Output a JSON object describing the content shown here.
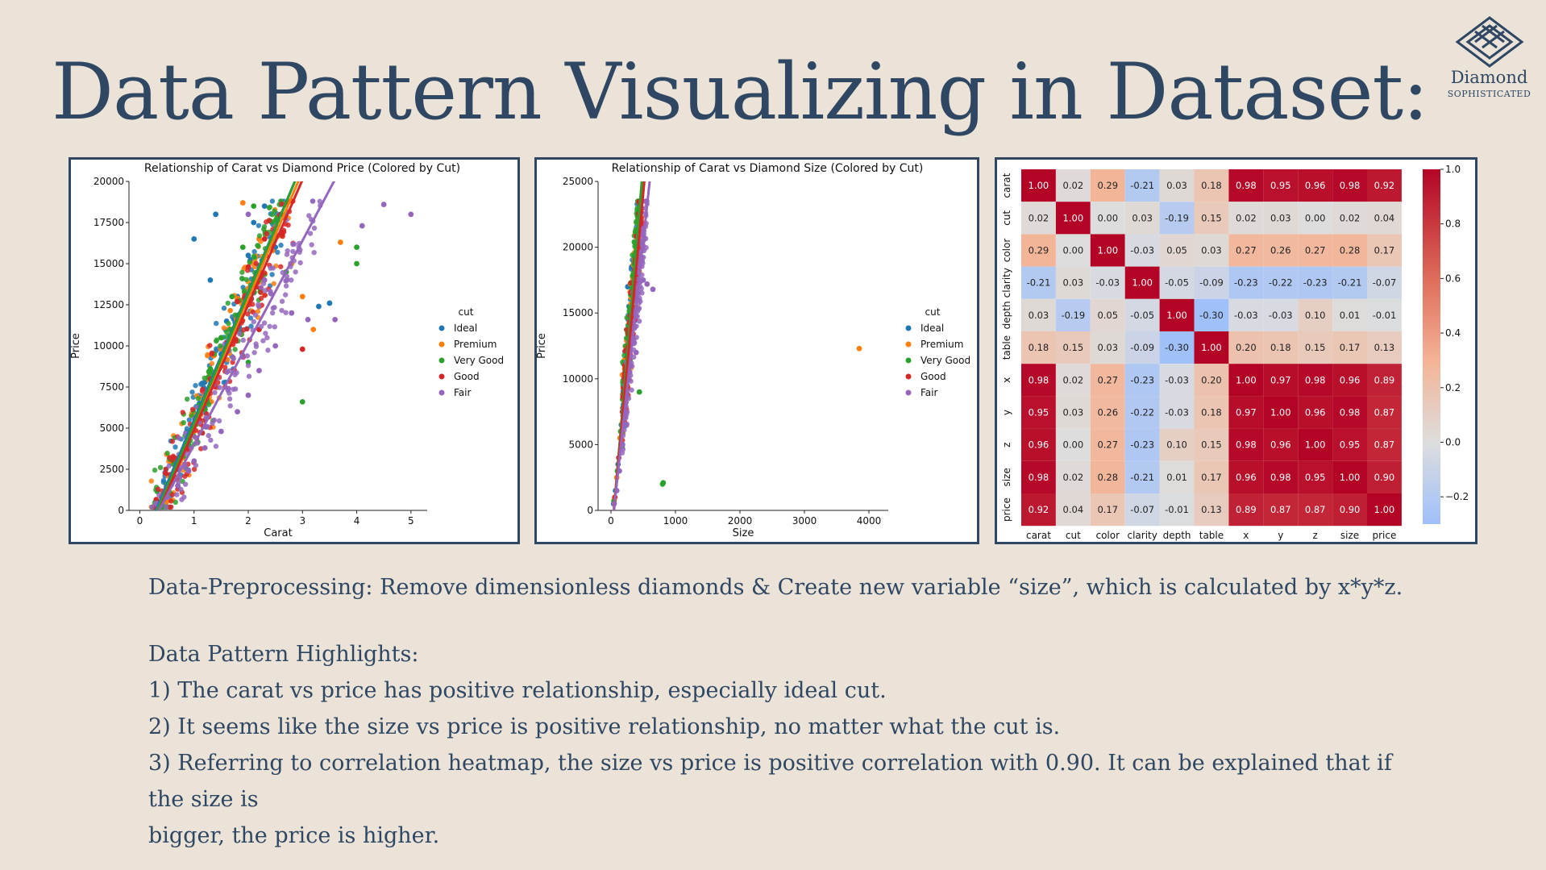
{
  "slide": {
    "title": "Data Pattern Visualizing in Dataset:",
    "logo": {
      "name": "Diamond",
      "tagline": "SOPHISTICATED",
      "icon": "diamond-logo-icon"
    },
    "preprocessing": "Data-Preprocessing: Remove dimensionless diamonds & Create new variable “size”, which is calculated by x*y*z.",
    "highlights_title": "Data Pattern Highlights:",
    "highlights": [
      "1) The carat vs price has positive relationship, especially ideal cut.",
      "2) It seems like the size vs price is positive relationship, no matter what the cut is.",
      "3) Referring to correlation heatmap, the size vs price is positive correlation with 0.90. It can be explained that if the size is",
      "bigger, the price is higher."
    ],
    "colors": {
      "background": "#ebe3d7",
      "text": "#2f4763",
      "border": "#2f4763"
    }
  },
  "chart_data": [
    {
      "type": "scatter",
      "title": "Relationship of Carat vs Diamond Price (Colored by Cut)",
      "xlabel": "Carat",
      "ylabel": "Price",
      "xlim": [
        -0.2,
        5.3
      ],
      "ylim": [
        0,
        20000
      ],
      "xticks": [
        0,
        1,
        2,
        3,
        4,
        5
      ],
      "yticks": [
        0,
        2500,
        5000,
        7500,
        10000,
        12500,
        15000,
        17500,
        20000
      ],
      "legend_title": "cut",
      "legend_position": "right",
      "series": [
        {
          "name": "Ideal",
          "color": "#1f77b4",
          "trend": {
            "slope": 7800,
            "intercept": -2300
          },
          "points": [
            [
              0.3,
              500
            ],
            [
              0.5,
              1400
            ],
            [
              0.7,
              2500
            ],
            [
              0.9,
              4000
            ],
            [
              1.0,
              5200
            ],
            [
              1.1,
              6500
            ],
            [
              1.2,
              7800
            ],
            [
              1.5,
              9500
            ],
            [
              1.6,
              11500
            ],
            [
              1.8,
              13000
            ],
            [
              2.0,
              15500
            ],
            [
              2.1,
              17500
            ],
            [
              2.3,
              18500
            ],
            [
              1.4,
              18000
            ],
            [
              1.0,
              16500
            ],
            [
              1.3,
              14000
            ],
            [
              2.5,
              16000
            ],
            [
              3.5,
              12600
            ],
            [
              3.3,
              12400
            ]
          ]
        },
        {
          "name": "Premium",
          "color": "#ff7f0e",
          "trend": {
            "slope": 7700,
            "intercept": -2500
          },
          "points": [
            [
              0.4,
              900
            ],
            [
              0.6,
              1800
            ],
            [
              0.8,
              3200
            ],
            [
              1.0,
              4800
            ],
            [
              1.2,
              7000
            ],
            [
              1.5,
              9000
            ],
            [
              1.7,
              11000
            ],
            [
              2.0,
              13500
            ],
            [
              2.2,
              16500
            ],
            [
              2.5,
              17000
            ],
            [
              2.8,
              15000
            ],
            [
              3.0,
              13000
            ],
            [
              3.7,
              16300
            ],
            [
              3.2,
              11000
            ],
            [
              1.9,
              18700
            ]
          ]
        },
        {
          "name": "Very Good",
          "color": "#2ca02c",
          "trend": {
            "slope": 7900,
            "intercept": -2600
          },
          "points": [
            [
              0.3,
              600
            ],
            [
              0.5,
              1600
            ],
            [
              0.7,
              2900
            ],
            [
              0.9,
              4500
            ],
            [
              1.1,
              6400
            ],
            [
              1.3,
              8600
            ],
            [
              1.5,
              10500
            ],
            [
              1.7,
              13000
            ],
            [
              1.9,
              16000
            ],
            [
              2.1,
              18500
            ],
            [
              2.4,
              17600
            ],
            [
              2.7,
              14500
            ],
            [
              3.0,
              6600
            ],
            [
              4.0,
              16000
            ],
            [
              4.0,
              15000
            ],
            [
              2.0,
              9000
            ]
          ]
        },
        {
          "name": "Good",
          "color": "#d62728",
          "trend": {
            "slope": 7600,
            "intercept": -2700
          },
          "points": [
            [
              0.4,
              800
            ],
            [
              0.6,
              1700
            ],
            [
              0.9,
              3700
            ],
            [
              1.1,
              5500
            ],
            [
              1.3,
              8000
            ],
            [
              1.6,
              10200
            ],
            [
              1.8,
              12700
            ],
            [
              2.0,
              14800
            ],
            [
              2.3,
              16500
            ],
            [
              2.6,
              18000
            ],
            [
              3.0,
              9800
            ],
            [
              2.2,
              11000
            ]
          ]
        },
        {
          "name": "Fair",
          "color": "#9467bd",
          "trend": {
            "slope": 6200,
            "intercept": -2200
          },
          "points": [
            [
              0.3,
              400
            ],
            [
              0.5,
              800
            ],
            [
              0.7,
              1500
            ],
            [
              0.9,
              2400
            ],
            [
              1.0,
              3000
            ],
            [
              1.2,
              3800
            ],
            [
              1.5,
              4800
            ],
            [
              1.8,
              6000
            ],
            [
              2.0,
              7000
            ],
            [
              2.2,
              8500
            ],
            [
              2.5,
              10000
            ],
            [
              2.8,
              12000
            ],
            [
              3.1,
              11600
            ],
            [
              3.6,
              11600
            ],
            [
              4.1,
              17300
            ],
            [
              4.5,
              18600
            ],
            [
              5.0,
              18000
            ],
            [
              2.3,
              14000
            ],
            [
              2.0,
              18000
            ]
          ]
        }
      ]
    },
    {
      "type": "scatter",
      "title": "Relationship of Carat vs Diamond Size (Colored by Cut)",
      "xlabel": "Size",
      "ylabel": "Price",
      "xlim": [
        -200,
        4300
      ],
      "ylim": [
        0,
        25000
      ],
      "xticks": [
        0,
        1000,
        2000,
        3000,
        4000
      ],
      "yticks": [
        0,
        5000,
        10000,
        15000,
        20000,
        25000
      ],
      "legend_title": "cut",
      "legend_position": "right",
      "series": [
        {
          "name": "Ideal",
          "color": "#1f77b4",
          "trend": {
            "slope": 56,
            "intercept": -2500
          },
          "points": [
            [
              40,
              500
            ],
            [
              70,
              1500
            ],
            [
              110,
              3500
            ],
            [
              160,
              6500
            ],
            [
              200,
              9000
            ],
            [
              240,
              12000
            ],
            [
              280,
              15500
            ],
            [
              320,
              18500
            ],
            [
              350,
              17800
            ],
            [
              260,
              17000
            ]
          ]
        },
        {
          "name": "Premium",
          "color": "#ff7f0e",
          "trend": {
            "slope": 54,
            "intercept": -2300
          },
          "points": [
            [
              50,
              800
            ],
            [
              90,
              2500
            ],
            [
              140,
              5500
            ],
            [
              190,
              8500
            ],
            [
              230,
              11500
            ],
            [
              290,
              14500
            ],
            [
              340,
              17500
            ],
            [
              3850,
              12300
            ],
            [
              420,
              18600
            ]
          ]
        },
        {
          "name": "Very Good",
          "color": "#2ca02c",
          "trend": {
            "slope": 58,
            "intercept": -2700
          },
          "points": [
            [
              45,
              700
            ],
            [
              100,
              3000
            ],
            [
              150,
              6000
            ],
            [
              210,
              10000
            ],
            [
              260,
              13500
            ],
            [
              310,
              16500
            ],
            [
              360,
              18700
            ],
            [
              810,
              2100
            ],
            [
              800,
              2000
            ],
            [
              440,
              9000
            ]
          ]
        },
        {
          "name": "Good",
          "color": "#d62728",
          "trend": {
            "slope": 53,
            "intercept": -2400
          },
          "points": [
            [
              60,
              1000
            ],
            [
              120,
              4000
            ],
            [
              180,
              7500
            ],
            [
              240,
              11000
            ],
            [
              300,
              14800
            ],
            [
              370,
              18300
            ],
            [
              380,
              18800
            ]
          ]
        },
        {
          "name": "Fair",
          "color": "#9467bd",
          "trend": {
            "slope": 45,
            "intercept": -2000
          },
          "points": [
            [
              50,
              500
            ],
            [
              90,
              1500
            ],
            [
              130,
              3000
            ],
            [
              180,
              5000
            ],
            [
              230,
              7500
            ],
            [
              290,
              10500
            ],
            [
              350,
              13000
            ],
            [
              420,
              16000
            ],
            [
              500,
              17500
            ],
            [
              560,
              17200
            ],
            [
              650,
              16800
            ],
            [
              390,
              12000
            ]
          ]
        }
      ]
    },
    {
      "type": "heatmap",
      "labels": [
        "carat",
        "cut",
        "color",
        "clarity",
        "depth",
        "table",
        "x",
        "y",
        "z",
        "size",
        "price"
      ],
      "colorbar_ticks": [
        1.0,
        0.8,
        0.6,
        0.4,
        0.2,
        0.0,
        -0.2
      ],
      "colorbar_tick_labels": [
        "1.0",
        "0.8",
        "0.6",
        "0.4",
        "0.2",
        "0.0",
        "−0.2"
      ],
      "colorbar_range": [
        -0.3,
        1.0
      ],
      "values": [
        [
          "1.00",
          "0.02",
          "0.29",
          "-0.21",
          "0.03",
          "0.18",
          "0.98",
          "0.95",
          "0.96",
          "0.98",
          "0.92"
        ],
        [
          "0.02",
          "1.00",
          "0.00",
          "0.03",
          "-0.19",
          "0.15",
          "0.02",
          "0.03",
          "0.00",
          "0.02",
          "0.04"
        ],
        [
          "0.29",
          "0.00",
          "1.00",
          "-0.03",
          "0.05",
          "0.03",
          "0.27",
          "0.26",
          "0.27",
          "0.28",
          "0.17"
        ],
        [
          "-0.21",
          "0.03",
          "-0.03",
          "1.00",
          "-0.05",
          "-0.09",
          "-0.23",
          "-0.22",
          "-0.23",
          "-0.21",
          "-0.07"
        ],
        [
          "0.03",
          "-0.19",
          "0.05",
          "-0.05",
          "1.00",
          "-0.30",
          "-0.03",
          "-0.03",
          "0.10",
          "0.01",
          "-0.01"
        ],
        [
          "0.18",
          "0.15",
          "0.03",
          "-0.09",
          "-0.30",
          "1.00",
          "0.20",
          "0.18",
          "0.15",
          "0.17",
          "0.13"
        ],
        [
          "0.98",
          "0.02",
          "0.27",
          "-0.23",
          "-0.03",
          "0.20",
          "1.00",
          "0.97",
          "0.98",
          "0.96",
          "0.89"
        ],
        [
          "0.95",
          "0.03",
          "0.26",
          "-0.22",
          "-0.03",
          "0.18",
          "0.97",
          "1.00",
          "0.96",
          "0.98",
          "0.87"
        ],
        [
          "0.96",
          "0.00",
          "0.27",
          "-0.23",
          "0.10",
          "0.15",
          "0.98",
          "0.96",
          "1.00",
          "0.95",
          "0.87"
        ],
        [
          "0.98",
          "0.02",
          "0.28",
          "-0.21",
          "0.01",
          "0.17",
          "0.96",
          "0.98",
          "0.95",
          "1.00",
          "0.90"
        ],
        [
          "0.92",
          "0.04",
          "0.17",
          "-0.07",
          "-0.01",
          "0.13",
          "0.89",
          "0.87",
          "0.87",
          "0.90",
          "1.00"
        ]
      ]
    }
  ]
}
